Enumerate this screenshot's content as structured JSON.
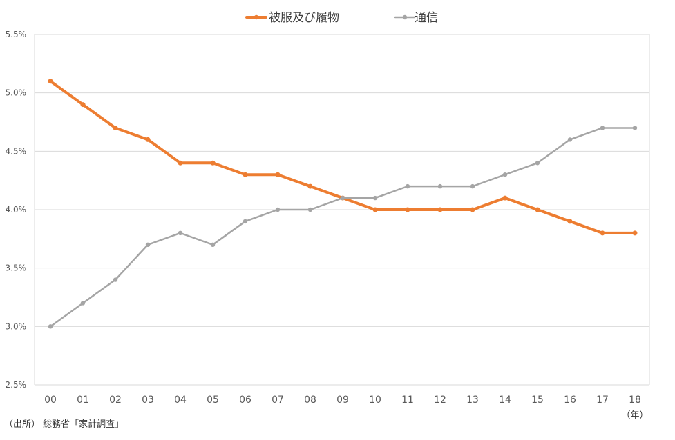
{
  "chart_data": {
    "type": "line",
    "categories": [
      "00",
      "01",
      "02",
      "03",
      "04",
      "05",
      "06",
      "07",
      "08",
      "09",
      "10",
      "11",
      "12",
      "13",
      "14",
      "15",
      "16",
      "17",
      "18"
    ],
    "series": [
      {
        "name": "被服及び履物",
        "color": "#ED7D31",
        "values": [
          5.1,
          4.9,
          4.7,
          4.6,
          4.4,
          4.4,
          4.3,
          4.3,
          4.2,
          4.1,
          4.0,
          4.0,
          4.0,
          4.0,
          4.1,
          4.0,
          3.9,
          3.8,
          3.8
        ]
      },
      {
        "name": "通信",
        "color": "#A5A5A5",
        "values": [
          3.0,
          3.2,
          3.4,
          3.7,
          3.8,
          3.7,
          3.9,
          4.0,
          4.0,
          4.1,
          4.1,
          4.2,
          4.2,
          4.2,
          4.3,
          4.4,
          4.6,
          4.7,
          4.7
        ]
      }
    ],
    "ylim": [
      2.5,
      5.5
    ],
    "yticks": [
      "2.5%",
      "3.0%",
      "3.5%",
      "4.0%",
      "4.5%",
      "5.0%",
      "5.5%"
    ],
    "ytick_values": [
      2.5,
      3.0,
      3.5,
      4.0,
      4.5,
      5.0,
      5.5
    ],
    "x_unit_label": "（年）",
    "legend_position": "top-center",
    "grid": true,
    "gridline_color": "#D9D9D9"
  },
  "footer": {
    "source": "（出所） 総務省「家計調査」"
  }
}
